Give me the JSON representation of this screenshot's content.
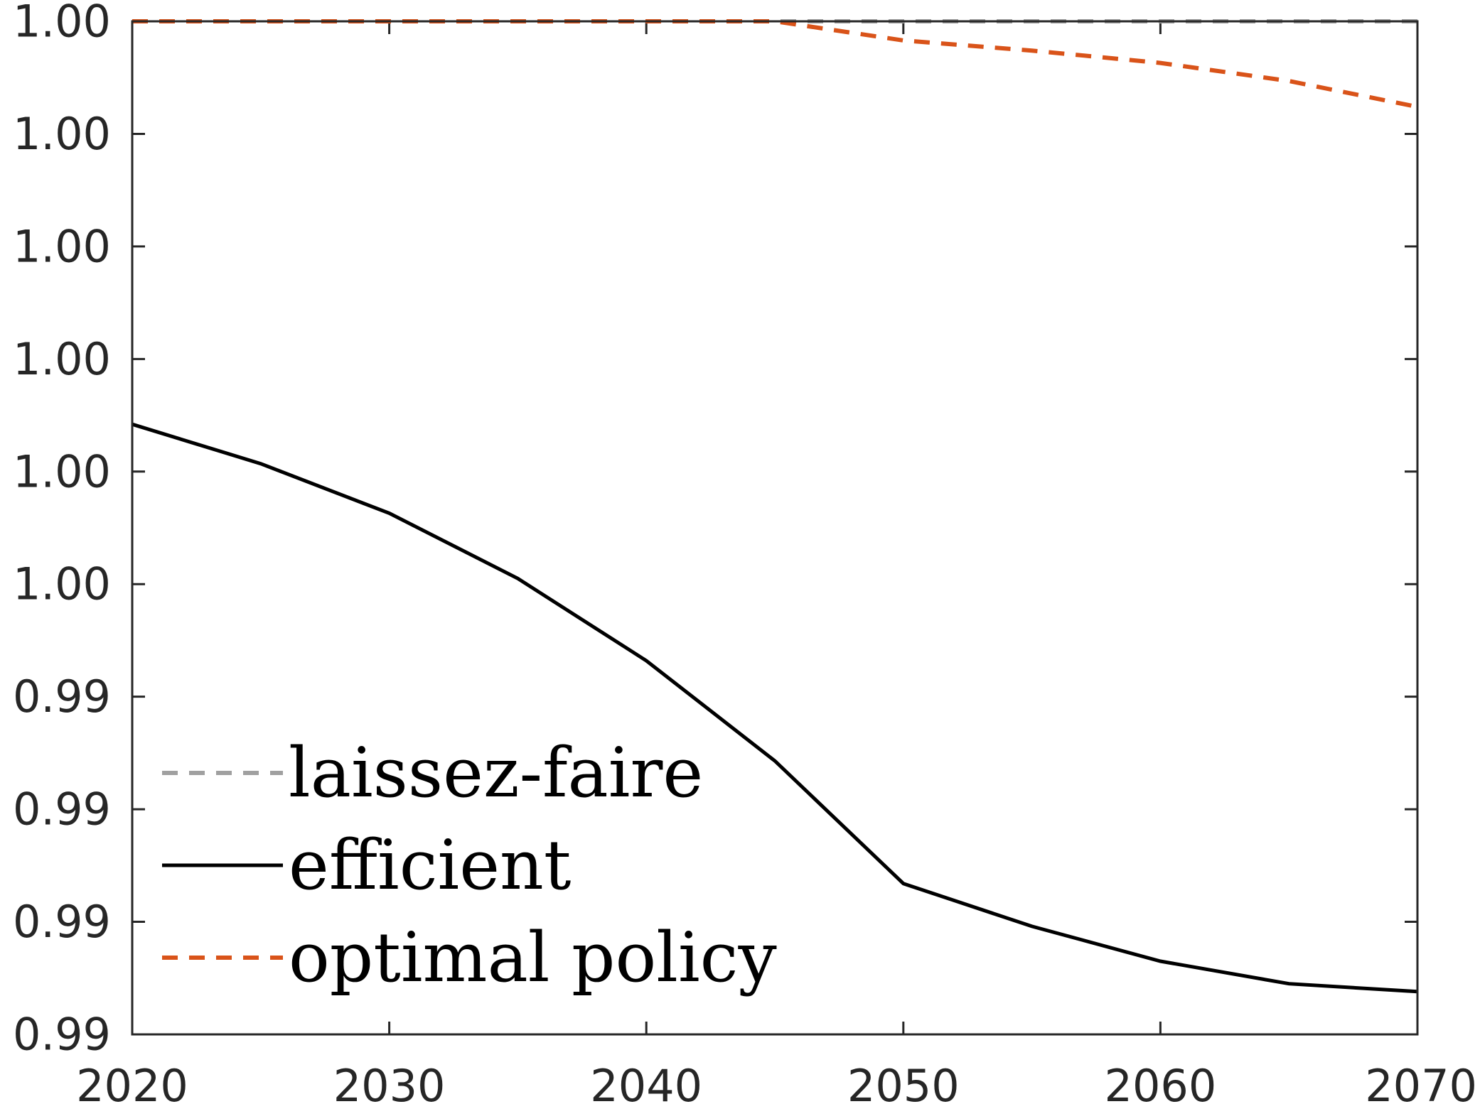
{
  "chart_data": {
    "type": "line",
    "title": "",
    "xlabel": "",
    "ylabel": "",
    "xlim": [
      2020,
      2070
    ],
    "ylim": [
      0,
      9
    ],
    "x_ticks": [
      2020,
      2030,
      2040,
      2050,
      2060,
      2070
    ],
    "x_tick_labels": [
      "2020",
      "2030",
      "2040",
      "2050",
      "2060",
      "2070"
    ],
    "y_ticks": [
      0,
      1,
      2,
      3,
      4,
      5,
      6,
      7,
      8,
      9
    ],
    "y_tick_labels": [
      "0.99",
      "0.99",
      "0.99",
      "0.99",
      "1.00",
      "1.00",
      "1.00",
      "1.00",
      "1.00",
      "1.00"
    ],
    "y_scale_note": "y values are positions on the tick grid in tick intervals; all tick labels print rounded values of about 1.00",
    "grid": false,
    "legend_position": "bottom-left",
    "series": [
      {
        "name": "laissez-faire",
        "color": "#a0a0a0",
        "style": "dashed",
        "x": [
          2020,
          2025,
          2030,
          2035,
          2040,
          2045,
          2050,
          2055,
          2060,
          2065,
          2070
        ],
        "values": [
          9,
          9,
          9,
          9,
          9,
          9,
          9,
          9,
          9,
          9,
          9
        ]
      },
      {
        "name": "efficient",
        "color": "#000000",
        "style": "solid",
        "x": [
          2020,
          2025,
          2030,
          2035,
          2040,
          2045,
          2050,
          2055,
          2060,
          2065,
          2070
        ],
        "values": [
          5.42,
          5.07,
          4.63,
          4.05,
          3.32,
          2.43,
          1.34,
          0.96,
          0.65,
          0.45,
          0.38
        ]
      },
      {
        "name": "optimal policy",
        "color": "#d95319",
        "style": "dashed",
        "x": [
          2020,
          2025,
          2030,
          2035,
          2040,
          2045,
          2050,
          2055,
          2060,
          2065,
          2070
        ],
        "values": [
          9,
          9,
          9,
          9,
          9,
          9,
          8.83,
          8.74,
          8.63,
          8.47,
          8.24
        ]
      }
    ]
  }
}
